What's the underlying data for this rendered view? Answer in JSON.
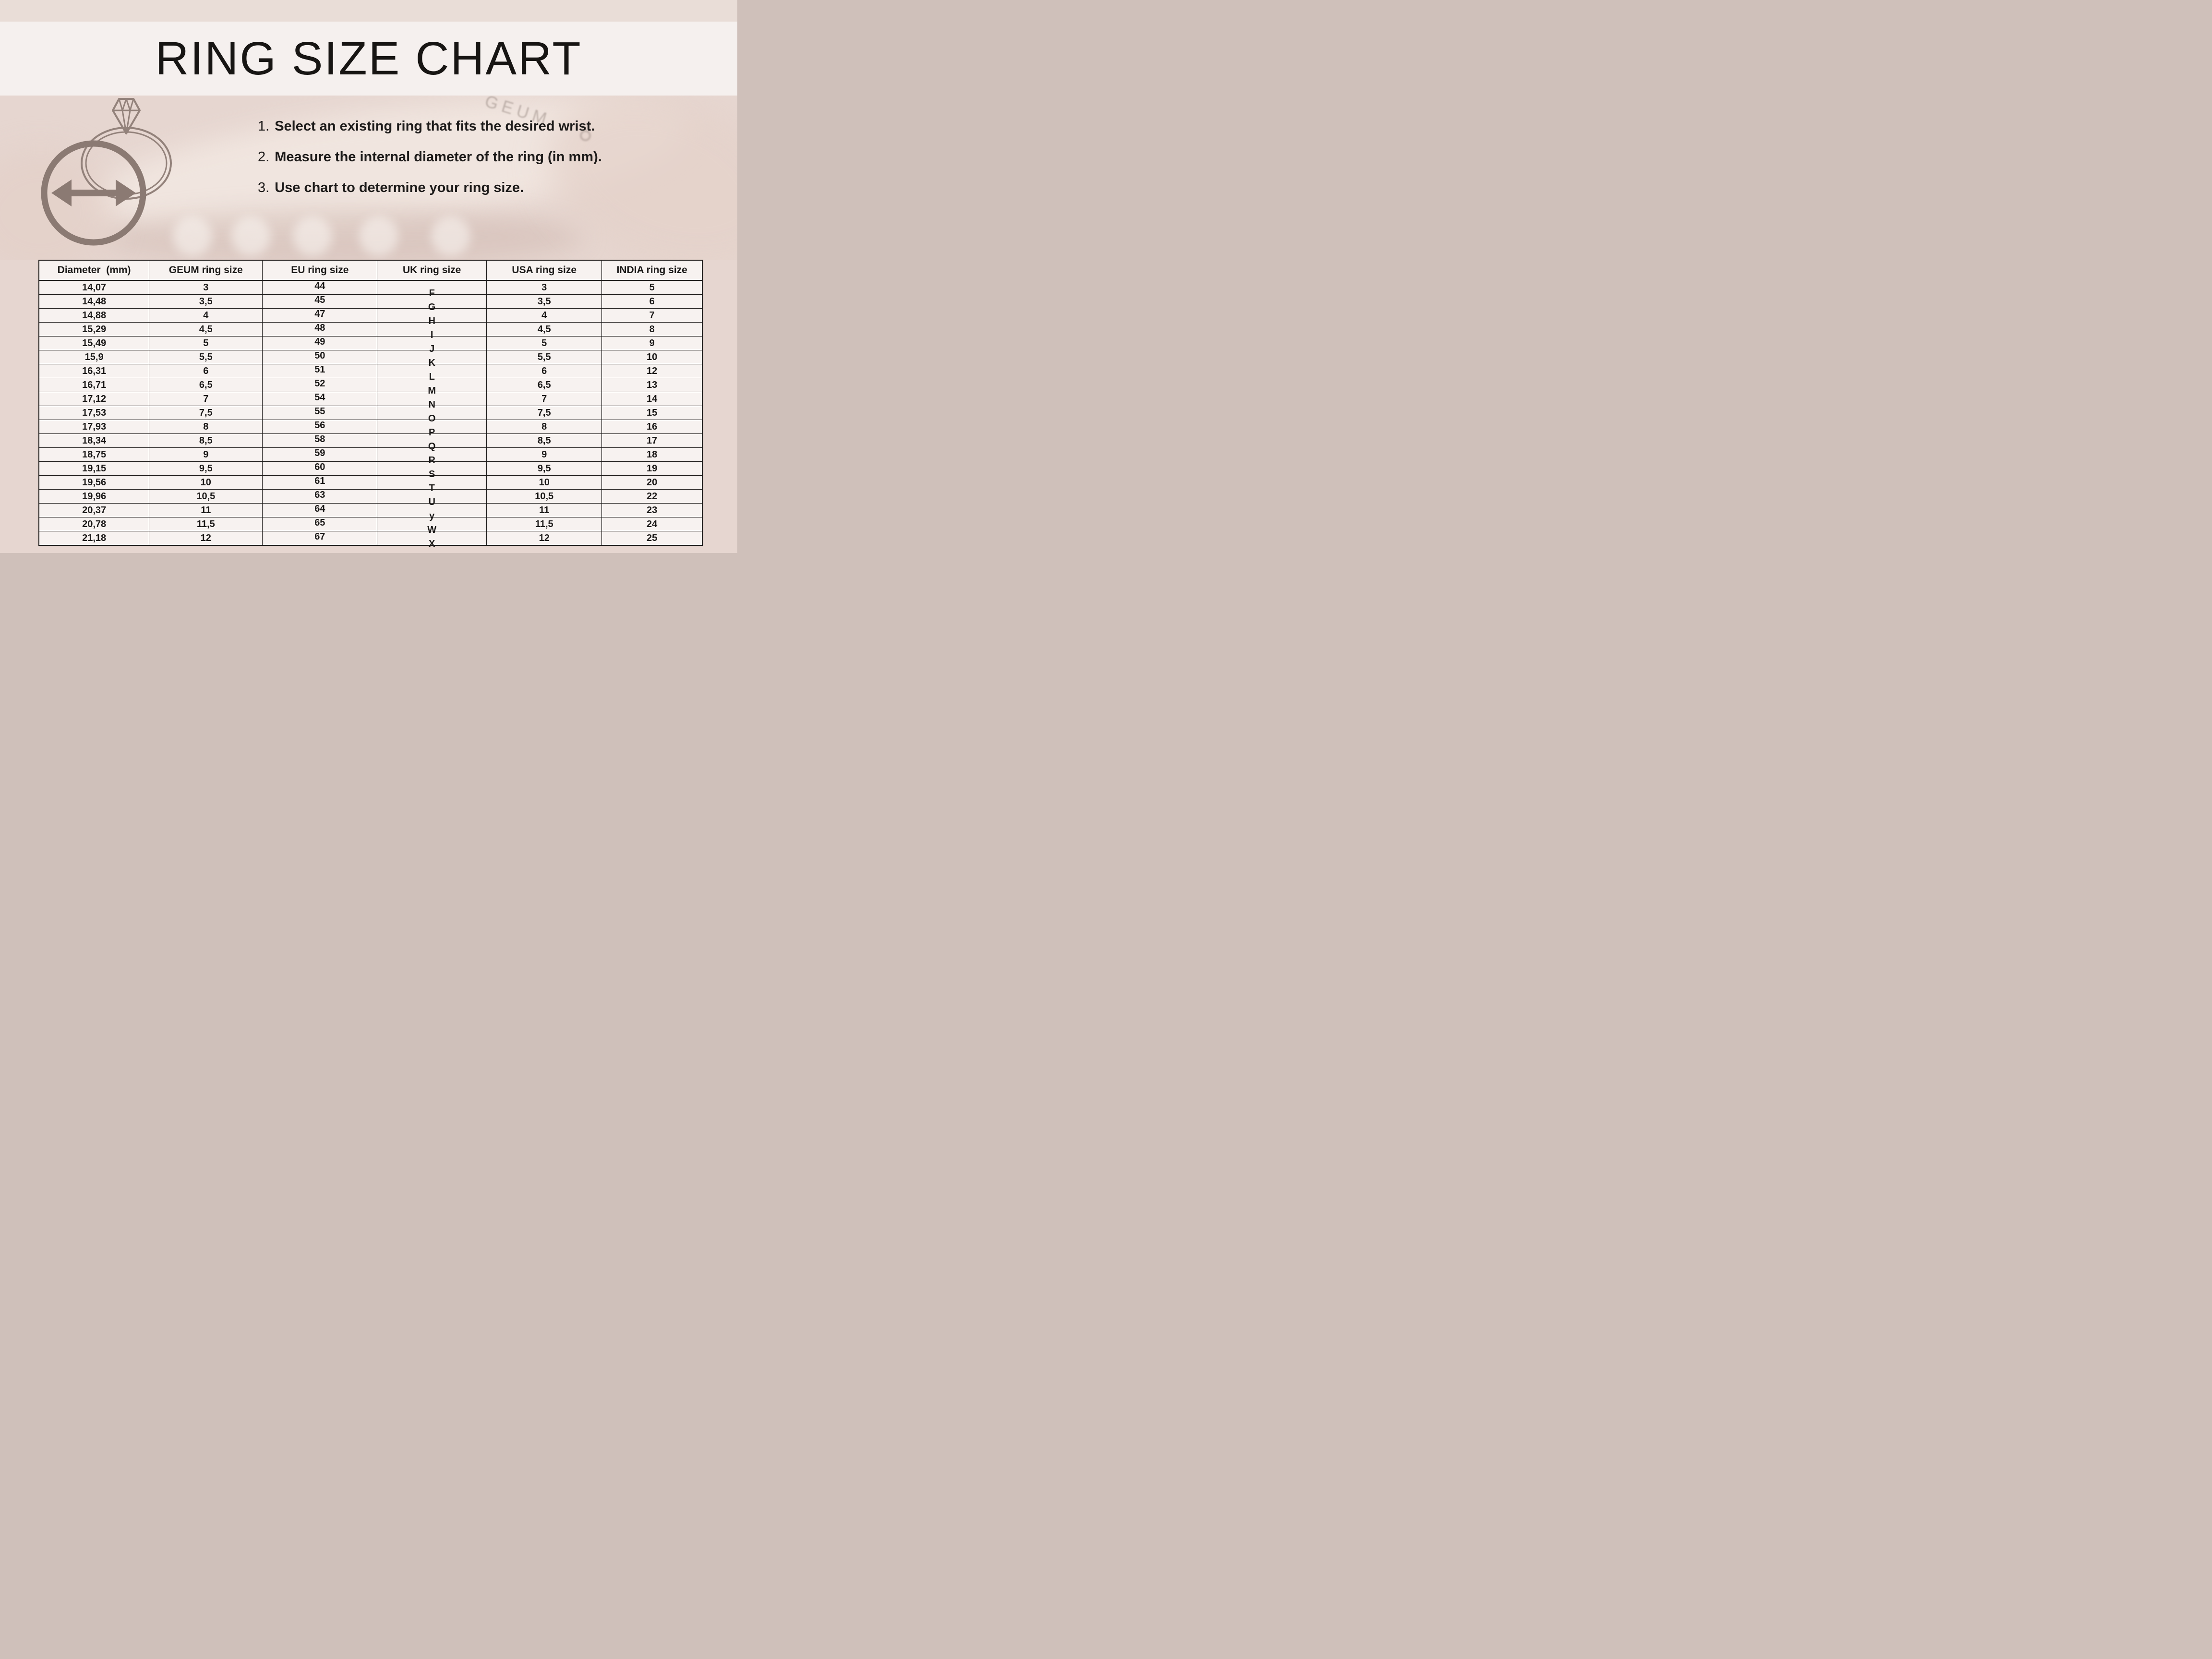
{
  "title": "RING SIZE CHART",
  "background_brand": "GEUM",
  "instructions": [
    {
      "num": "1.",
      "text": "Select an existing ring that fits the desired wrist."
    },
    {
      "num": "2.",
      "text": "Measure the internal diameter of the ring (in mm)."
    },
    {
      "num": "3.",
      "text": "Use chart to determine your ring size."
    }
  ],
  "table": {
    "columns": [
      "Diameter  (mm)",
      "GEUM ring size",
      "EU ring size",
      "UK ring size",
      "USA ring size",
      "INDIA ring size"
    ],
    "rows": [
      [
        "14,07",
        "3",
        "44",
        "F",
        "3",
        "5"
      ],
      [
        "14,48",
        "3,5",
        "45",
        "G",
        "3,5",
        "6"
      ],
      [
        "14,88",
        "4",
        "47",
        "H",
        "4",
        "7"
      ],
      [
        "15,29",
        "4,5",
        "48",
        "I",
        "4,5",
        "8"
      ],
      [
        "15,49",
        "5",
        "49",
        "J",
        "5",
        "9"
      ],
      [
        "15,9",
        "5,5",
        "50",
        "K",
        "5,5",
        "10"
      ],
      [
        "16,31",
        "6",
        "51",
        "L",
        "6",
        "12"
      ],
      [
        "16,71",
        "6,5",
        "52",
        "M",
        "6,5",
        "13"
      ],
      [
        "17,12",
        "7",
        "54",
        "N",
        "7",
        "14"
      ],
      [
        "17,53",
        "7,5",
        "55",
        "O",
        "7,5",
        "15"
      ],
      [
        "17,93",
        "8",
        "56",
        "P",
        "8",
        "16"
      ],
      [
        "18,34",
        "8,5",
        "58",
        "Q",
        "8,5",
        "17"
      ],
      [
        "18,75",
        "9",
        "59",
        "R",
        "9",
        "18"
      ],
      [
        "19,15",
        "9,5",
        "60",
        "S",
        "9,5",
        "19"
      ],
      [
        "19,56",
        "10",
        "61",
        "T",
        "10",
        "20"
      ],
      [
        "19,96",
        "10,5",
        "63",
        "U",
        "10,5",
        "22"
      ],
      [
        "20,37",
        "11",
        "64",
        "y",
        "11",
        "23"
      ],
      [
        "20,78",
        "11,5",
        "65",
        "W",
        "11,5",
        "24"
      ],
      [
        "21,18",
        "12",
        "67",
        "X",
        "12",
        "25"
      ]
    ]
  },
  "icons": {
    "diamond_ring": "diamond-ring-icon",
    "measure_circle": "diameter-measure-circle-icon",
    "double_arrow": "double-arrow-icon",
    "hallmark": "hallmark-icon"
  },
  "colors": {
    "top_strip": "#e9ddd7",
    "title_band": "#f5f0ee",
    "page_bg": "#e6d6d0",
    "table_bg": "#f7f2f0",
    "table_border": "#1d1b1a",
    "text": "#1b1918",
    "icon_primary": "#8b7a73",
    "icon_secondary": "#93827b"
  }
}
